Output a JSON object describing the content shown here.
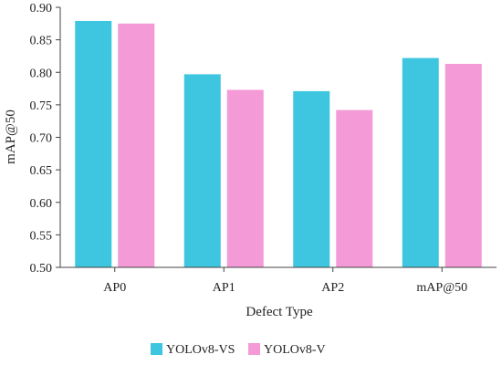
{
  "chart_data": {
    "type": "bar",
    "categories": [
      "AP0",
      "AP1",
      "AP2",
      "mAP@50"
    ],
    "series": [
      {
        "name": "YOLOv8-VS",
        "values": [
          0.879,
          0.797,
          0.771,
          0.822
        ],
        "color": "#3ec6e0"
      },
      {
        "name": "YOLOv8-V",
        "values": [
          0.875,
          0.773,
          0.742,
          0.813
        ],
        "color": "#f49ad6"
      }
    ],
    "xlabel": "Defect Type",
    "ylabel": "mAP@50",
    "ylim": [
      0.5,
      0.9
    ],
    "yticks": [
      "0.50",
      "0.55",
      "0.60",
      "0.65",
      "0.70",
      "0.75",
      "0.80",
      "0.85",
      "0.90"
    ],
    "grid": false,
    "legend_position": "bottom-center"
  }
}
